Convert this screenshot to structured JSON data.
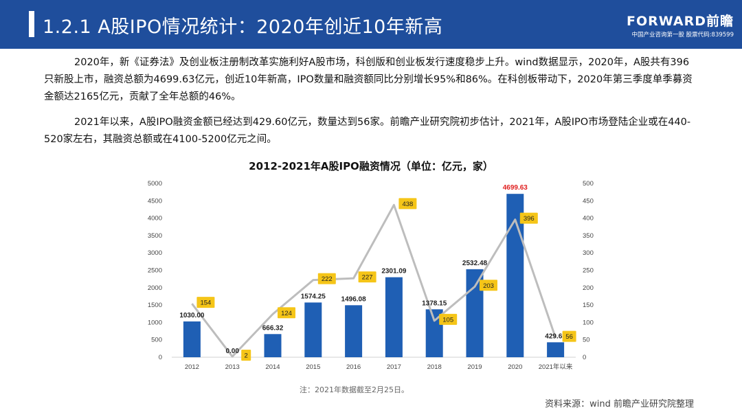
{
  "header": {
    "title": "1.2.1 A股IPO情况统计：2020年创近10年新高",
    "brand_name": "FORWARD前瞻",
    "brand_tagline": "中国产业咨询第一股 股票代码:839599"
  },
  "body": {
    "paragraph1": "2020年，新《证券法》及创业板注册制改革实施利好A股市场，科创版和创业板发行速度稳步上升。wind数据显示，2020年，A股共有396只新股上市，融资总额为4699.63亿元，创近10年新高，IPO数量和融资额同比分别增长95%和86%。在科创板带动下，2020年第三季度单季募资金额达2165亿元，贡献了全年总额的46%。",
    "paragraph2": "2021年以来，A股IPO融资金额已经达到429.60亿元，数量达到56家。前瞻产业研究院初步估计，2021年，A股IPO市场登陆企业或在440-520家左右，其融资总额或在4100-5200亿元之间。"
  },
  "chart_data": {
    "type": "bar",
    "title": "2012-2021年A股IPO融资情况（单位：亿元，家）",
    "categories": [
      "2012",
      "2013",
      "2014",
      "2015",
      "2016",
      "2017",
      "2018",
      "2019",
      "2020",
      "2021年以来"
    ],
    "series": [
      {
        "type": "bar",
        "axis": "left",
        "values": [
          1030.0,
          0.0,
          666.32,
          1574.25,
          1496.08,
          2301.09,
          1378.15,
          2532.48,
          4699.63,
          429.6
        ],
        "labels": [
          "1030.00",
          "0.00",
          "666.32",
          "1574.25",
          "1496.08",
          "2301.09",
          "1378.15",
          "2532.48",
          "4699.63",
          "429.60"
        ],
        "color": "#1f5fb4",
        "highlight_index": 8,
        "highlight_color": "#e02020"
      },
      {
        "type": "line",
        "axis": "right",
        "values": [
          154,
          2,
          124,
          222,
          227,
          438,
          105,
          203,
          396,
          56
        ],
        "labels": [
          "154",
          "2",
          "124",
          "222",
          "227",
          "438",
          "105",
          "203",
          "396",
          "56"
        ],
        "color": "#bdbdbd",
        "label_bg": "#f5c518"
      }
    ],
    "y_left": {
      "min": 0,
      "max": 5000,
      "ticks": [
        "0",
        "500",
        "1000",
        "1500",
        "2000",
        "2500",
        "3000",
        "3500",
        "4000",
        "4500",
        "5000"
      ]
    },
    "y_right": {
      "min": 0,
      "max": 500,
      "ticks": [
        "0",
        "50",
        "100",
        "150",
        "200",
        "250",
        "300",
        "350",
        "400",
        "450",
        "500"
      ]
    },
    "grid": false,
    "legend": "none"
  },
  "footnote": "注：2021年数据截至2月25日。",
  "source": "资料来源：wind 前瞻产业研究院整理"
}
